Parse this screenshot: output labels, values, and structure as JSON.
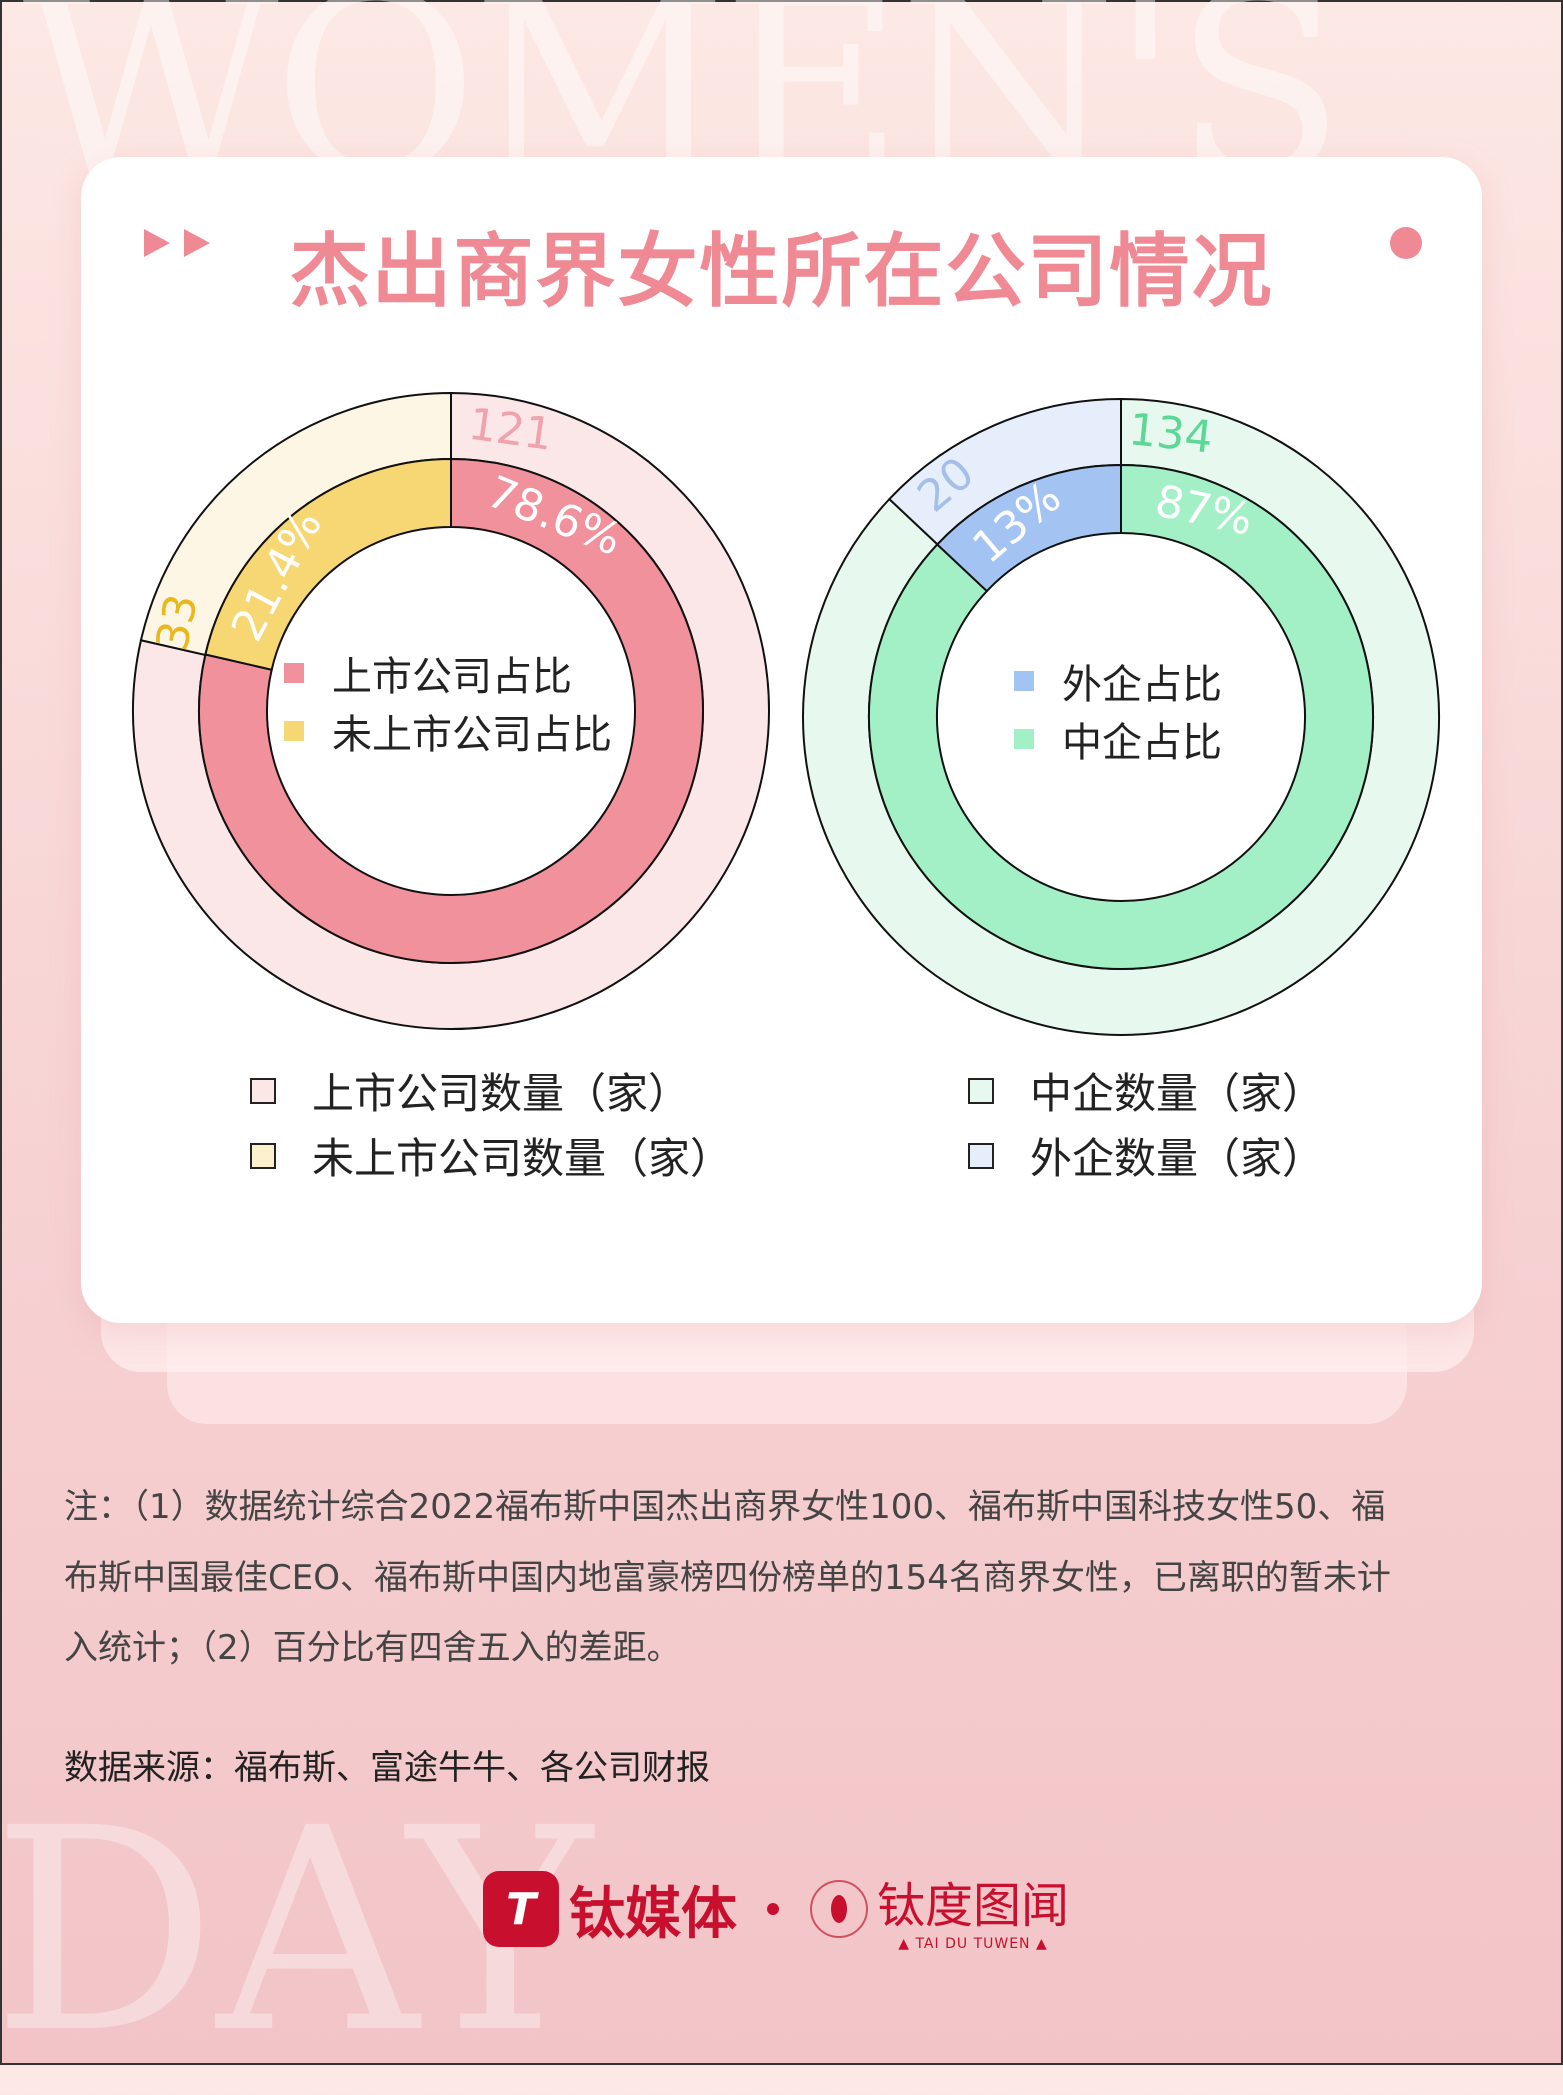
{
  "watermark_top": "WOMEN'S",
  "watermark_bottom": "DAY",
  "title": "杰出商界女性所在公司情况",
  "chart_data": [
    {
      "type": "donut",
      "rings": [
        {
          "ring": "outer",
          "series": [
            {
              "name": "上市公司数量（家）",
              "value": 121,
              "label": "121",
              "color": "#fbe6e8",
              "label_color": "#f0a3ad"
            },
            {
              "name": "未上市公司数量（家）",
              "value": 33,
              "label": "33",
              "color": "#fdf6e4",
              "label_color": "#e9b81e"
            }
          ]
        },
        {
          "ring": "inner",
          "series": [
            {
              "name": "上市公司占比",
              "value": 78.6,
              "label": "78.6%",
              "color": "#f0919b",
              "label_color": "#ffffff"
            },
            {
              "name": "未上市公司占比",
              "value": 21.4,
              "label": "21.4%",
              "color": "#f7d774",
              "label_color": "#ffffff"
            }
          ]
        }
      ]
    },
    {
      "type": "donut",
      "rings": [
        {
          "ring": "outer",
          "series": [
            {
              "name": "中企数量（家）",
              "value": 134,
              "label": "134",
              "color": "#e7f9ee",
              "label_color": "#5cd896"
            },
            {
              "name": "外企数量（家）",
              "value": 20,
              "label": "20",
              "color": "#e7eefb",
              "label_color": "#a3bfea"
            }
          ]
        },
        {
          "ring": "inner",
          "series": [
            {
              "name": "中企占比",
              "value": 87,
              "label": "87%",
              "color": "#a3f0c6",
              "label_color": "#ffffff"
            },
            {
              "name": "外企占比",
              "value": 13,
              "label": "13%",
              "color": "#a3c3f3",
              "label_color": "#ffffff"
            }
          ]
        }
      ]
    }
  ],
  "note": {
    "line1": "注：（1）数据统计综合2022福布斯中国杰出商界女性100、福布斯中国科技女性50、福",
    "line2": "布斯中国最佳CEO、福布斯中国内地富豪榜四份榜单的154名商界女性，已离职的暂未计",
    "line3": "入统计；（2）百分比有四舍五入的差距。"
  },
  "source": "数据来源：福布斯、富途牛牛、各公司财报",
  "logo": {
    "brand1": "钛媒体",
    "brand2": "钛度图闻",
    "brand2_sub": "▲ TAI DU TUWEN ▲",
    "color": "#c8102e"
  }
}
